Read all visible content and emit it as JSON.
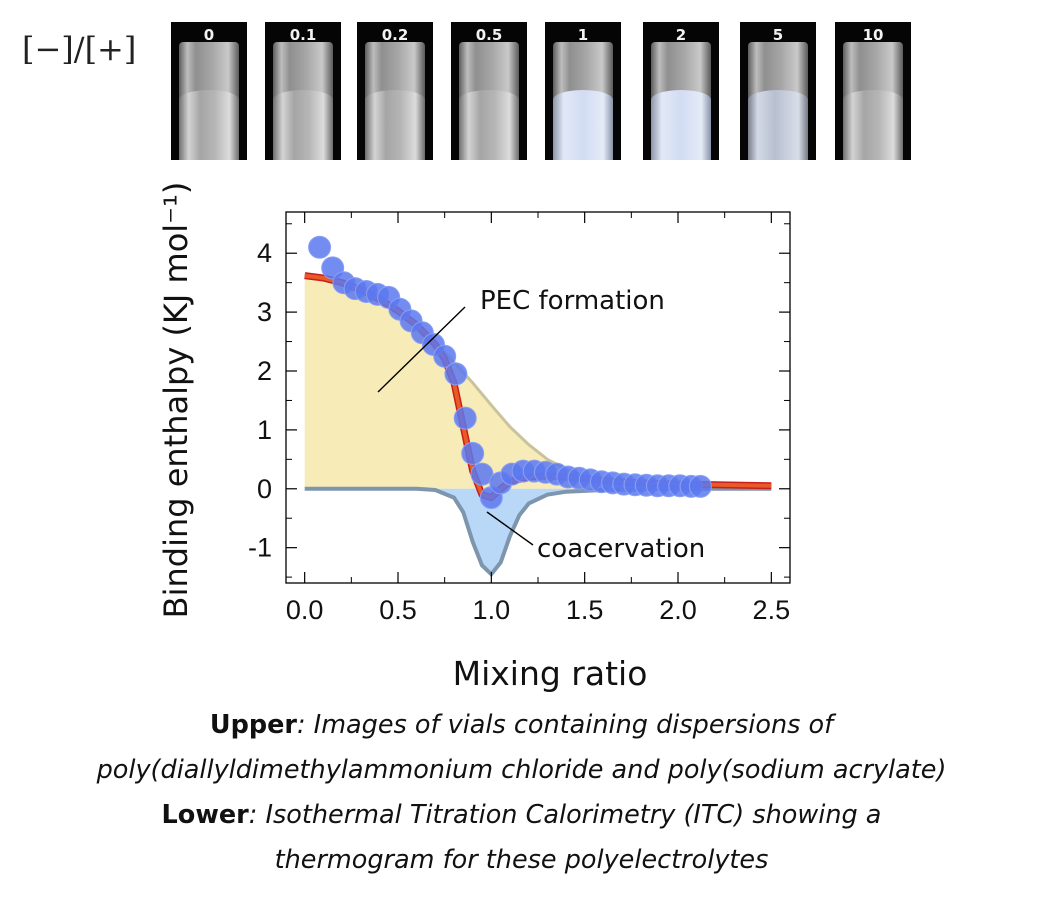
{
  "vials": {
    "ratio_label": "[−]/[+]",
    "items": [
      {
        "label": "0",
        "appearance": "clear"
      },
      {
        "label": "0.1",
        "appearance": "clear"
      },
      {
        "label": "0.2",
        "appearance": "clear"
      },
      {
        "label": "0.5",
        "appearance": "clear"
      },
      {
        "label": "1",
        "appearance": "turbid"
      },
      {
        "label": "2",
        "appearance": "turbid"
      },
      {
        "label": "5",
        "appearance": "slight"
      },
      {
        "label": "10",
        "appearance": "clear"
      }
    ]
  },
  "chart_data": {
    "type": "scatter",
    "xlabel": "Mixing ratio",
    "ylabel": "Binding enthalpy (KJ mol⁻¹)",
    "xlim": [
      -0.1,
      2.6
    ],
    "ylim": [
      -1.6,
      4.7
    ],
    "xticks": [
      "0.0",
      "0.5",
      "1.0",
      "1.5",
      "2.0",
      "2.5"
    ],
    "yticks": [
      "-1",
      "0",
      "1",
      "2",
      "3",
      "4"
    ],
    "annotations": [
      "PEC formation",
      "coacervation"
    ],
    "colors": {
      "points": "#5b78f0",
      "fit": "#e85a26",
      "fit_outline": "#c91e1e",
      "pec_fill": "#f7ebb8",
      "pec_line": "#c9c39c",
      "coac_fill": "#b9d7f7",
      "coac_line": "#7d95ad"
    },
    "series": [
      {
        "role": "data",
        "x": [
          0.08,
          0.15,
          0.21,
          0.27,
          0.33,
          0.39,
          0.45,
          0.51,
          0.57,
          0.63,
          0.69,
          0.75,
          0.81,
          0.86,
          0.9,
          0.95,
          1.0,
          1.05,
          1.11,
          1.17,
          1.23,
          1.29,
          1.35,
          1.41,
          1.47,
          1.53,
          1.59,
          1.65,
          1.71,
          1.77,
          1.83,
          1.89,
          1.95,
          2.01,
          2.07,
          2.12
        ],
        "y": [
          4.1,
          3.75,
          3.5,
          3.4,
          3.35,
          3.3,
          3.25,
          3.05,
          2.85,
          2.65,
          2.45,
          2.25,
          1.95,
          1.2,
          0.6,
          0.25,
          -0.15,
          0.1,
          0.25,
          0.3,
          0.3,
          0.28,
          0.25,
          0.2,
          0.18,
          0.15,
          0.12,
          0.1,
          0.08,
          0.07,
          0.06,
          0.05,
          0.05,
          0.05,
          0.04,
          0.04
        ]
      },
      {
        "role": "fit",
        "x": [
          0.0,
          0.1,
          0.2,
          0.3,
          0.4,
          0.5,
          0.6,
          0.7,
          0.75,
          0.8,
          0.85,
          0.9,
          0.95,
          1.0,
          1.05,
          1.1,
          1.2,
          1.3,
          1.4,
          1.5,
          1.6,
          1.8,
          2.0,
          2.2,
          2.5
        ],
        "y": [
          3.62,
          3.58,
          3.5,
          3.38,
          3.22,
          3.02,
          2.78,
          2.45,
          2.2,
          1.8,
          1.05,
          0.3,
          -0.1,
          -0.15,
          0.0,
          0.12,
          0.2,
          0.22,
          0.2,
          0.17,
          0.14,
          0.1,
          0.08,
          0.07,
          0.05
        ]
      },
      {
        "role": "pec_formation_component",
        "x": [
          0.0,
          0.1,
          0.2,
          0.3,
          0.4,
          0.5,
          0.6,
          0.7,
          0.8,
          0.9,
          1.0,
          1.1,
          1.2,
          1.3,
          1.4,
          1.5,
          1.6,
          1.8,
          2.0,
          2.2,
          2.5
        ],
        "y": [
          3.62,
          3.58,
          3.5,
          3.38,
          3.22,
          3.02,
          2.78,
          2.48,
          2.15,
          1.8,
          1.42,
          1.05,
          0.75,
          0.5,
          0.33,
          0.22,
          0.15,
          0.09,
          0.07,
          0.06,
          0.05
        ]
      },
      {
        "role": "coacervation_component",
        "x": [
          0.0,
          0.6,
          0.7,
          0.8,
          0.85,
          0.9,
          0.95,
          1.0,
          1.05,
          1.1,
          1.15,
          1.2,
          1.3,
          1.4,
          1.6,
          2.0,
          2.5
        ],
        "y": [
          0.0,
          0.0,
          -0.02,
          -0.15,
          -0.4,
          -0.9,
          -1.3,
          -1.45,
          -1.25,
          -0.8,
          -0.45,
          -0.25,
          -0.1,
          -0.05,
          -0.02,
          0.0,
          0.0
        ]
      }
    ]
  },
  "caption": {
    "line1_bold": "Upper",
    "line1_italic": ": Images of vials containing dispersions of",
    "line2_italic": "poly(diallyldimethylammonium chloride and poly(sodium acrylate)",
    "line3_bold": "Lower",
    "line3_italic": ": Isothermal Titration Calorimetry (ITC) showing a",
    "line4_italic": "thermogram for these polyelectrolytes"
  }
}
